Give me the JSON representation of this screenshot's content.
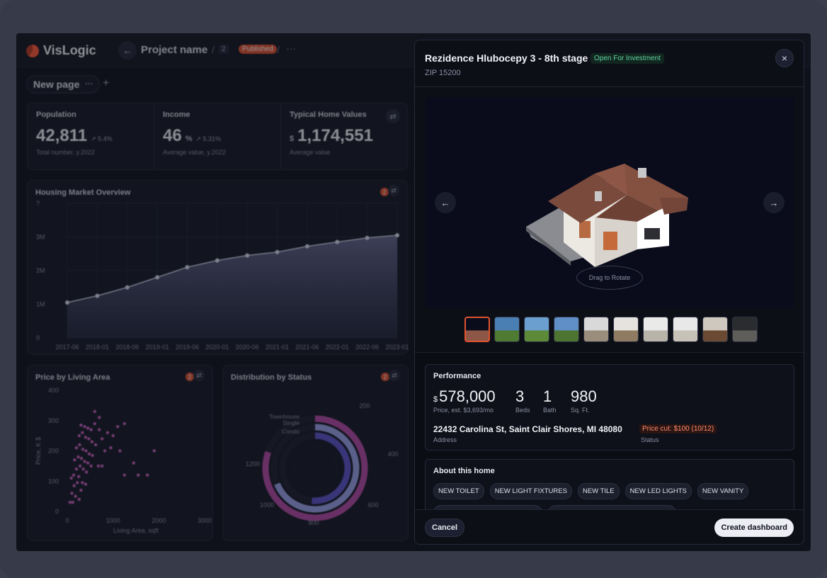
{
  "app": {
    "logo_text": "VisLogic",
    "project_name": "Project name",
    "count_badge": "2",
    "status_badge": "Published",
    "more_label": "···",
    "page_tab": "New page",
    "page_tab_menu": "···",
    "add_page": "+"
  },
  "kpis": [
    {
      "label": "Population",
      "value": "42,811",
      "prefix": "",
      "unit": "",
      "delta": "↗ 5.4%",
      "sub": "Total number, y.2022"
    },
    {
      "label": "Income",
      "value": "46",
      "prefix": "",
      "unit": "%",
      "delta": "↗ 5.31%",
      "sub": "Average value, y.2022"
    },
    {
      "label": "Typical Home Values",
      "value": "1,174,551",
      "prefix": "$",
      "unit": "",
      "delta": "",
      "sub": "Average value"
    }
  ],
  "market_card": {
    "title": "Housing Market Overview",
    "badge": "2"
  },
  "scatter_card": {
    "title": "Price by Living Area",
    "badge": "2",
    "xlabel": "Living Area, sqft",
    "ylabel": "Price, K $"
  },
  "dist_card": {
    "title": "Distribution by Status",
    "badge": "2"
  },
  "chart_data": [
    {
      "type": "area",
      "title": "Housing Market Overview",
      "categories": [
        "2017-06",
        "2018-01",
        "2018-06",
        "2019-01",
        "2019-06",
        "2020-01",
        "2020-06",
        "2021-01",
        "2021-06",
        "2022-01",
        "2022-06",
        "2023-01"
      ],
      "values": [
        1.05,
        1.25,
        1.5,
        1.8,
        2.1,
        2.3,
        2.45,
        2.55,
        2.72,
        2.85,
        2.97,
        3.05
      ],
      "yticks": [
        "0",
        "1M",
        "2M",
        "3M",
        "?"
      ],
      "ylim": [
        0,
        4
      ]
    },
    {
      "type": "scatter",
      "title": "Price by Living Area",
      "xlabel": "Living Area, sqft",
      "ylabel": "Price, K $",
      "xticks": [
        "0",
        "1000",
        "2000",
        "3000"
      ],
      "yticks": [
        "0",
        "100",
        "200",
        "300",
        "400"
      ],
      "xlim": [
        0,
        3000
      ],
      "ylim": [
        0,
        400
      ],
      "points": [
        [
          60,
          30
        ],
        [
          120,
          30
        ],
        [
          100,
          60
        ],
        [
          180,
          50
        ],
        [
          260,
          40
        ],
        [
          150,
          85
        ],
        [
          220,
          95
        ],
        [
          300,
          70
        ],
        [
          90,
          110
        ],
        [
          140,
          120
        ],
        [
          250,
          115
        ],
        [
          330,
          95
        ],
        [
          400,
          90
        ],
        [
          200,
          140
        ],
        [
          280,
          150
        ],
        [
          350,
          140
        ],
        [
          420,
          130
        ],
        [
          160,
          170
        ],
        [
          240,
          180
        ],
        [
          310,
          175
        ],
        [
          380,
          165
        ],
        [
          450,
          160
        ],
        [
          520,
          150
        ],
        [
          200,
          210
        ],
        [
          270,
          220
        ],
        [
          340,
          205
        ],
        [
          410,
          200
        ],
        [
          480,
          190
        ],
        [
          550,
          185
        ],
        [
          260,
          250
        ],
        [
          330,
          260
        ],
        [
          400,
          245
        ],
        [
          470,
          240
        ],
        [
          540,
          230
        ],
        [
          620,
          220
        ],
        [
          300,
          285
        ],
        [
          380,
          280
        ],
        [
          450,
          275
        ],
        [
          520,
          270
        ],
        [
          600,
          290
        ],
        [
          700,
          270
        ],
        [
          760,
          240
        ],
        [
          820,
          200
        ],
        [
          950,
          210
        ],
        [
          1000,
          250
        ],
        [
          1150,
          200
        ],
        [
          1250,
          120
        ],
        [
          1450,
          160
        ],
        [
          1550,
          120
        ],
        [
          1750,
          120
        ],
        [
          1900,
          200
        ],
        [
          680,
          150
        ],
        [
          760,
          150
        ],
        [
          1250,
          290
        ],
        [
          1100,
          280
        ],
        [
          880,
          260
        ],
        [
          600,
          330
        ],
        [
          700,
          310
        ]
      ]
    },
    {
      "type": "pie",
      "title": "Distribution by Status",
      "categories": [
        "Townhouse",
        "Single",
        "Condo"
      ],
      "radial_ticks": [
        "200",
        "400",
        "600",
        "800",
        "1000",
        "1200"
      ],
      "values": [
        1120,
        960,
        720
      ],
      "colors": [
        "#b44aa3",
        "#9aa1e6",
        "#5b53c8"
      ]
    }
  ],
  "modal": {
    "title": "Rezidence Hlubocepy 3 - 8th stage",
    "tag": "Open For Investment",
    "zip": "ZIP 15200",
    "close_icon": "×",
    "prev_icon": "←",
    "next_icon": "→",
    "rotate_hint": "Drag to Rotate",
    "thumbnails": 10,
    "performance": {
      "title": "Performance",
      "price_prefix": "$",
      "price": "578,000",
      "price_label": "Price, est. $3,693/mo",
      "beds": "3",
      "beds_label": "Beds",
      "bath": "1",
      "bath_label": "Bath",
      "sqft": "980",
      "sqft_label": "Sq. Ft.",
      "address": "22432 Carolina St, Saint Clair Shores, MI 48080",
      "address_label": "Address",
      "status": "Price cut: $100 (10/12)",
      "status_label": "Status"
    },
    "about": {
      "title": "About this home",
      "chips": [
        "NEW TOILET",
        "NEW LIGHT FIXTURES",
        "NEW TILE",
        "NEW LED LIGHTS",
        "NEW VANITY",
        "NEW FRONT EXTERIOR DOOR",
        "FRESHLY PAINTED BLACK CEILINGS"
      ]
    },
    "cancel_label": "Cancel",
    "create_label": "Create dashboard"
  },
  "colors": {
    "accent": "#e2532f",
    "success": "#5fd3a0",
    "modal_bg": "#0d0f17"
  }
}
